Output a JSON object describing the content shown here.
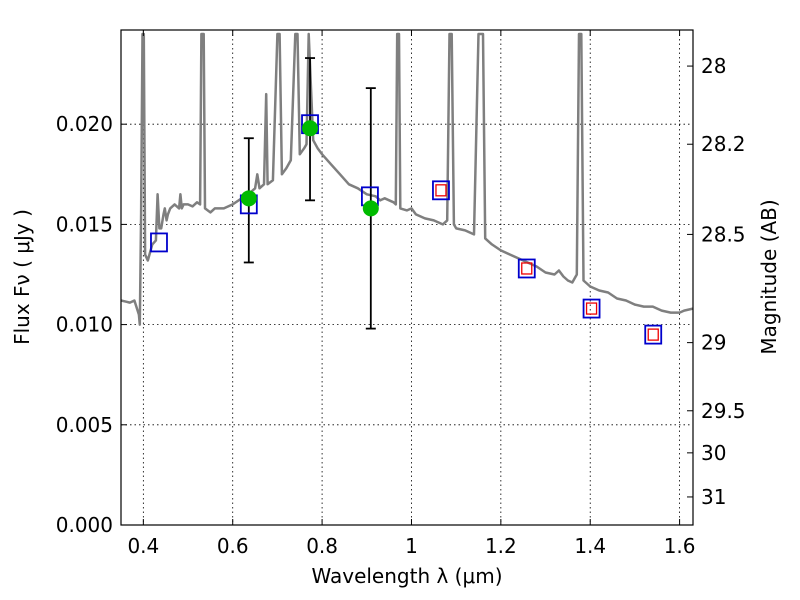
{
  "chart_data": {
    "type": "scatter",
    "xlabel": "Wavelength  λ (μm)",
    "ylabel": "Flux  Fν  ( μJy )",
    "ylabel_right": "Magnitude (AB)",
    "xlim": [
      0.35,
      1.63
    ],
    "ylim": [
      0.0,
      0.0247
    ],
    "grid": true,
    "x_ticks": [
      {
        "value": 0.4,
        "label": "0.4"
      },
      {
        "value": 0.6,
        "label": "0.6"
      },
      {
        "value": 0.8,
        "label": "0.8"
      },
      {
        "value": 1.0,
        "label": "1"
      },
      {
        "value": 1.2,
        "label": "1.2"
      },
      {
        "value": 1.4,
        "label": "1.4"
      },
      {
        "value": 1.6,
        "label": "1.6"
      }
    ],
    "y_ticks": [
      {
        "value": 0.0,
        "label": "0.000"
      },
      {
        "value": 0.005,
        "label": "0.005"
      },
      {
        "value": 0.01,
        "label": "0.010"
      },
      {
        "value": 0.015,
        "label": "0.015"
      },
      {
        "value": 0.02,
        "label": "0.020"
      }
    ],
    "y_ticks_right": [
      {
        "flux": 0.0229,
        "label": "28"
      },
      {
        "flux": 0.019,
        "label": "28.2"
      },
      {
        "flux": 0.0145,
        "label": "28.5"
      },
      {
        "flux": 0.0091,
        "label": "29"
      },
      {
        "flux": 0.0057,
        "label": "29.5"
      },
      {
        "flux": 0.0036,
        "label": "30"
      },
      {
        "flux": 0.0014,
        "label": "31"
      }
    ],
    "colors": {
      "spectrum": "#7f7f7f",
      "observed": "#00bb00",
      "model_outer": "#0000cc",
      "model_inner": "#ee0000",
      "errorbar": "#000000"
    },
    "spectrum": [
      [
        0.35,
        0.0112
      ],
      [
        0.37,
        0.0111
      ],
      [
        0.38,
        0.0112
      ],
      [
        0.39,
        0.0105
      ],
      [
        0.392,
        0.01
      ],
      [
        0.395,
        0.0155
      ],
      [
        0.398,
        0.0245
      ],
      [
        0.401,
        0.0245
      ],
      [
        0.404,
        0.0135
      ],
      [
        0.41,
        0.0132
      ],
      [
        0.42,
        0.014
      ],
      [
        0.428,
        0.0142
      ],
      [
        0.432,
        0.0165
      ],
      [
        0.436,
        0.0148
      ],
      [
        0.44,
        0.0148
      ],
      [
        0.445,
        0.0155
      ],
      [
        0.448,
        0.0158
      ],
      [
        0.452,
        0.0152
      ],
      [
        0.455,
        0.0155
      ],
      [
        0.46,
        0.0158
      ],
      [
        0.47,
        0.016
      ],
      [
        0.48,
        0.0158
      ],
      [
        0.483,
        0.0165
      ],
      [
        0.486,
        0.0158
      ],
      [
        0.49,
        0.016
      ],
      [
        0.5,
        0.016
      ],
      [
        0.51,
        0.0159
      ],
      [
        0.52,
        0.0161
      ],
      [
        0.527,
        0.016
      ],
      [
        0.53,
        0.0245
      ],
      [
        0.535,
        0.0245
      ],
      [
        0.538,
        0.0158
      ],
      [
        0.55,
        0.0156
      ],
      [
        0.56,
        0.0158
      ],
      [
        0.58,
        0.0158
      ],
      [
        0.6,
        0.016
      ],
      [
        0.62,
        0.0163
      ],
      [
        0.64,
        0.0166
      ],
      [
        0.65,
        0.0168
      ],
      [
        0.655,
        0.0175
      ],
      [
        0.66,
        0.0168
      ],
      [
        0.67,
        0.017
      ],
      [
        0.675,
        0.0215
      ],
      [
        0.678,
        0.017
      ],
      [
        0.69,
        0.0172
      ],
      [
        0.7,
        0.0245
      ],
      [
        0.705,
        0.0245
      ],
      [
        0.71,
        0.0175
      ],
      [
        0.72,
        0.0178
      ],
      [
        0.73,
        0.0182
      ],
      [
        0.74,
        0.0245
      ],
      [
        0.745,
        0.0245
      ],
      [
        0.75,
        0.0185
      ],
      [
        0.76,
        0.0188
      ],
      [
        0.765,
        0.019
      ],
      [
        0.77,
        0.0245
      ],
      [
        0.78,
        0.0192
      ],
      [
        0.79,
        0.0188
      ],
      [
        0.8,
        0.0185
      ],
      [
        0.82,
        0.018
      ],
      [
        0.84,
        0.0175
      ],
      [
        0.86,
        0.017
      ],
      [
        0.88,
        0.0168
      ],
      [
        0.9,
        0.0165
      ],
      [
        0.92,
        0.0164
      ],
      [
        0.93,
        0.0162
      ],
      [
        0.94,
        0.0163
      ],
      [
        0.95,
        0.0162
      ],
      [
        0.96,
        0.0161
      ],
      [
        0.965,
        0.016
      ],
      [
        0.968,
        0.0245
      ],
      [
        0.972,
        0.0245
      ],
      [
        0.975,
        0.0158
      ],
      [
        0.99,
        0.0157
      ],
      [
        1.0,
        0.0158
      ],
      [
        1.01,
        0.0155
      ],
      [
        1.03,
        0.0153
      ],
      [
        1.05,
        0.0152
      ],
      [
        1.07,
        0.015
      ],
      [
        1.08,
        0.0152
      ],
      [
        1.085,
        0.0245
      ],
      [
        1.09,
        0.0245
      ],
      [
        1.095,
        0.015
      ],
      [
        1.1,
        0.0148
      ],
      [
        1.12,
        0.0147
      ],
      [
        1.14,
        0.0145
      ],
      [
        1.15,
        0.0245
      ],
      [
        1.16,
        0.0245
      ],
      [
        1.165,
        0.0143
      ],
      [
        1.18,
        0.014
      ],
      [
        1.2,
        0.0137
      ],
      [
        1.22,
        0.0135
      ],
      [
        1.25,
        0.0132
      ],
      [
        1.28,
        0.0129
      ],
      [
        1.3,
        0.0126
      ],
      [
        1.32,
        0.0125
      ],
      [
        1.33,
        0.0127
      ],
      [
        1.34,
        0.0124
      ],
      [
        1.35,
        0.0122
      ],
      [
        1.36,
        0.0121
      ],
      [
        1.37,
        0.0125
      ],
      [
        1.375,
        0.0245
      ],
      [
        1.38,
        0.0245
      ],
      [
        1.385,
        0.0122
      ],
      [
        1.4,
        0.0119
      ],
      [
        1.42,
        0.0117
      ],
      [
        1.44,
        0.0116
      ],
      [
        1.46,
        0.0113
      ],
      [
        1.48,
        0.0112
      ],
      [
        1.5,
        0.011
      ],
      [
        1.52,
        0.0109
      ],
      [
        1.54,
        0.0109
      ],
      [
        1.56,
        0.0107
      ],
      [
        1.58,
        0.0106
      ],
      [
        1.6,
        0.0106
      ],
      [
        1.61,
        0.0107
      ],
      [
        1.63,
        0.0108
      ]
    ],
    "observed": [
      {
        "x": 0.636,
        "y": 0.0163,
        "yerr_low": 0.0032,
        "yerr_high": 0.003
      },
      {
        "x": 0.773,
        "y": 0.0198,
        "yerr_low": 0.0036,
        "yerr_high": 0.0035
      },
      {
        "x": 0.909,
        "y": 0.0158,
        "yerr_low": 0.006,
        "yerr_high": 0.006
      }
    ],
    "model_boxes": [
      {
        "x": 0.435,
        "y": 0.0141,
        "inner": false
      },
      {
        "x": 0.636,
        "y": 0.016,
        "inner": false
      },
      {
        "x": 0.773,
        "y": 0.02,
        "inner": false
      },
      {
        "x": 0.907,
        "y": 0.0164,
        "inner": false
      },
      {
        "x": 1.066,
        "y": 0.0167,
        "inner": true
      },
      {
        "x": 1.258,
        "y": 0.0128,
        "inner": true
      },
      {
        "x": 1.403,
        "y": 0.0108,
        "inner": true
      },
      {
        "x": 1.541,
        "y": 0.0095,
        "inner": true
      }
    ]
  }
}
